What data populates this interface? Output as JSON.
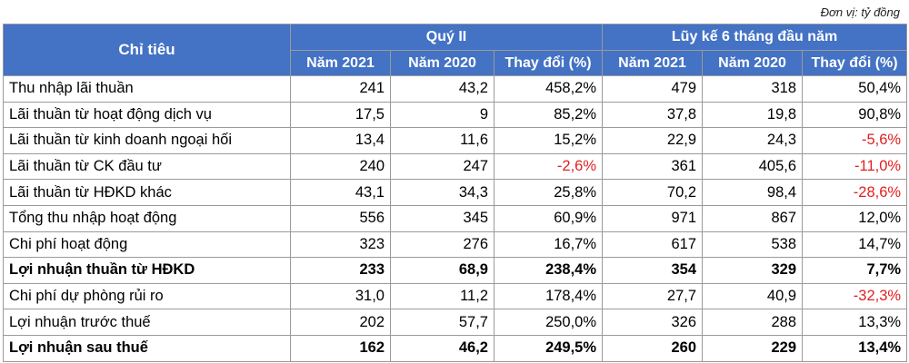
{
  "unit_note": "Đơn vị: tỷ đồng",
  "header": {
    "indicator": "Chỉ tiêu",
    "group_q2": "Quý II",
    "group_6m": "Lũy kế 6 tháng đầu năm",
    "col_y2021": "Năm 2021",
    "col_y2020": "Năm 2020",
    "col_change": "Thay đổi (%)"
  },
  "rows": [
    {
      "label": "Thu nhập lãi thuần",
      "q2_2021": "241",
      "q2_2020": "43,2",
      "q2_change": "458,2%",
      "h1_2021": "479",
      "h1_2020": "318",
      "h1_change": "50,4%"
    },
    {
      "label": "Lãi thuần từ hoạt động dịch vụ",
      "q2_2021": "17,5",
      "q2_2020": "9",
      "q2_change": "85,2%",
      "h1_2021": "37,8",
      "h1_2020": "19,8",
      "h1_change": "90,8%"
    },
    {
      "label": "Lãi thuần từ kinh doanh ngoại hối",
      "q2_2021": "13,4",
      "q2_2020": "11,6",
      "q2_change": "15,2%",
      "h1_2021": "22,9",
      "h1_2020": "24,3",
      "h1_change": "-5,6%"
    },
    {
      "label": "Lãi thuần từ CK đầu tư",
      "q2_2021": "240",
      "q2_2020": "247",
      "q2_change": "-2,6%",
      "h1_2021": "361",
      "h1_2020": "405,6",
      "h1_change": "-11,0%"
    },
    {
      "label": "Lãi thuần từ HĐKD khác",
      "q2_2021": "43,1",
      "q2_2020": "34,3",
      "q2_change": "25,8%",
      "h1_2021": "70,2",
      "h1_2020": "98,4",
      "h1_change": "-28,6%"
    },
    {
      "label": "Tổng thu nhập hoạt động",
      "q2_2021": "556",
      "q2_2020": "345",
      "q2_change": "60,9%",
      "h1_2021": "971",
      "h1_2020": "867",
      "h1_change": "12,0%"
    },
    {
      "label": "Chi phí hoạt động",
      "q2_2021": "323",
      "q2_2020": "276",
      "q2_change": "16,7%",
      "h1_2021": "617",
      "h1_2020": "538",
      "h1_change": "14,7%"
    },
    {
      "label": "Lợi nhuận thuần từ HĐKD",
      "q2_2021": "233",
      "q2_2020": "68,9",
      "q2_change": "238,4%",
      "h1_2021": "354",
      "h1_2020": "329",
      "h1_change": "7,7%"
    },
    {
      "label": "Chi phí dự phòng rủi ro",
      "q2_2021": "31,0",
      "q2_2020": "11,2",
      "q2_change": "178,4%",
      "h1_2021": "27,7",
      "h1_2020": "40,9",
      "h1_change": "-32,3%"
    },
    {
      "label": "Lợi nhuận trước thuế",
      "q2_2021": "202",
      "q2_2020": "57,7",
      "q2_change": "250,0%",
      "h1_2021": "326",
      "h1_2020": "288",
      "h1_change": "13,3%"
    },
    {
      "label": "Lợi nhuận sau thuế",
      "q2_2021": "162",
      "q2_2020": "46,2",
      "q2_change": "249,5%",
      "h1_2021": "260",
      "h1_2020": "229",
      "h1_change": "13,4%"
    }
  ],
  "colors": {
    "header_bg": "#4472c4",
    "header_text": "#ffffff",
    "negative": "#e02020"
  }
}
